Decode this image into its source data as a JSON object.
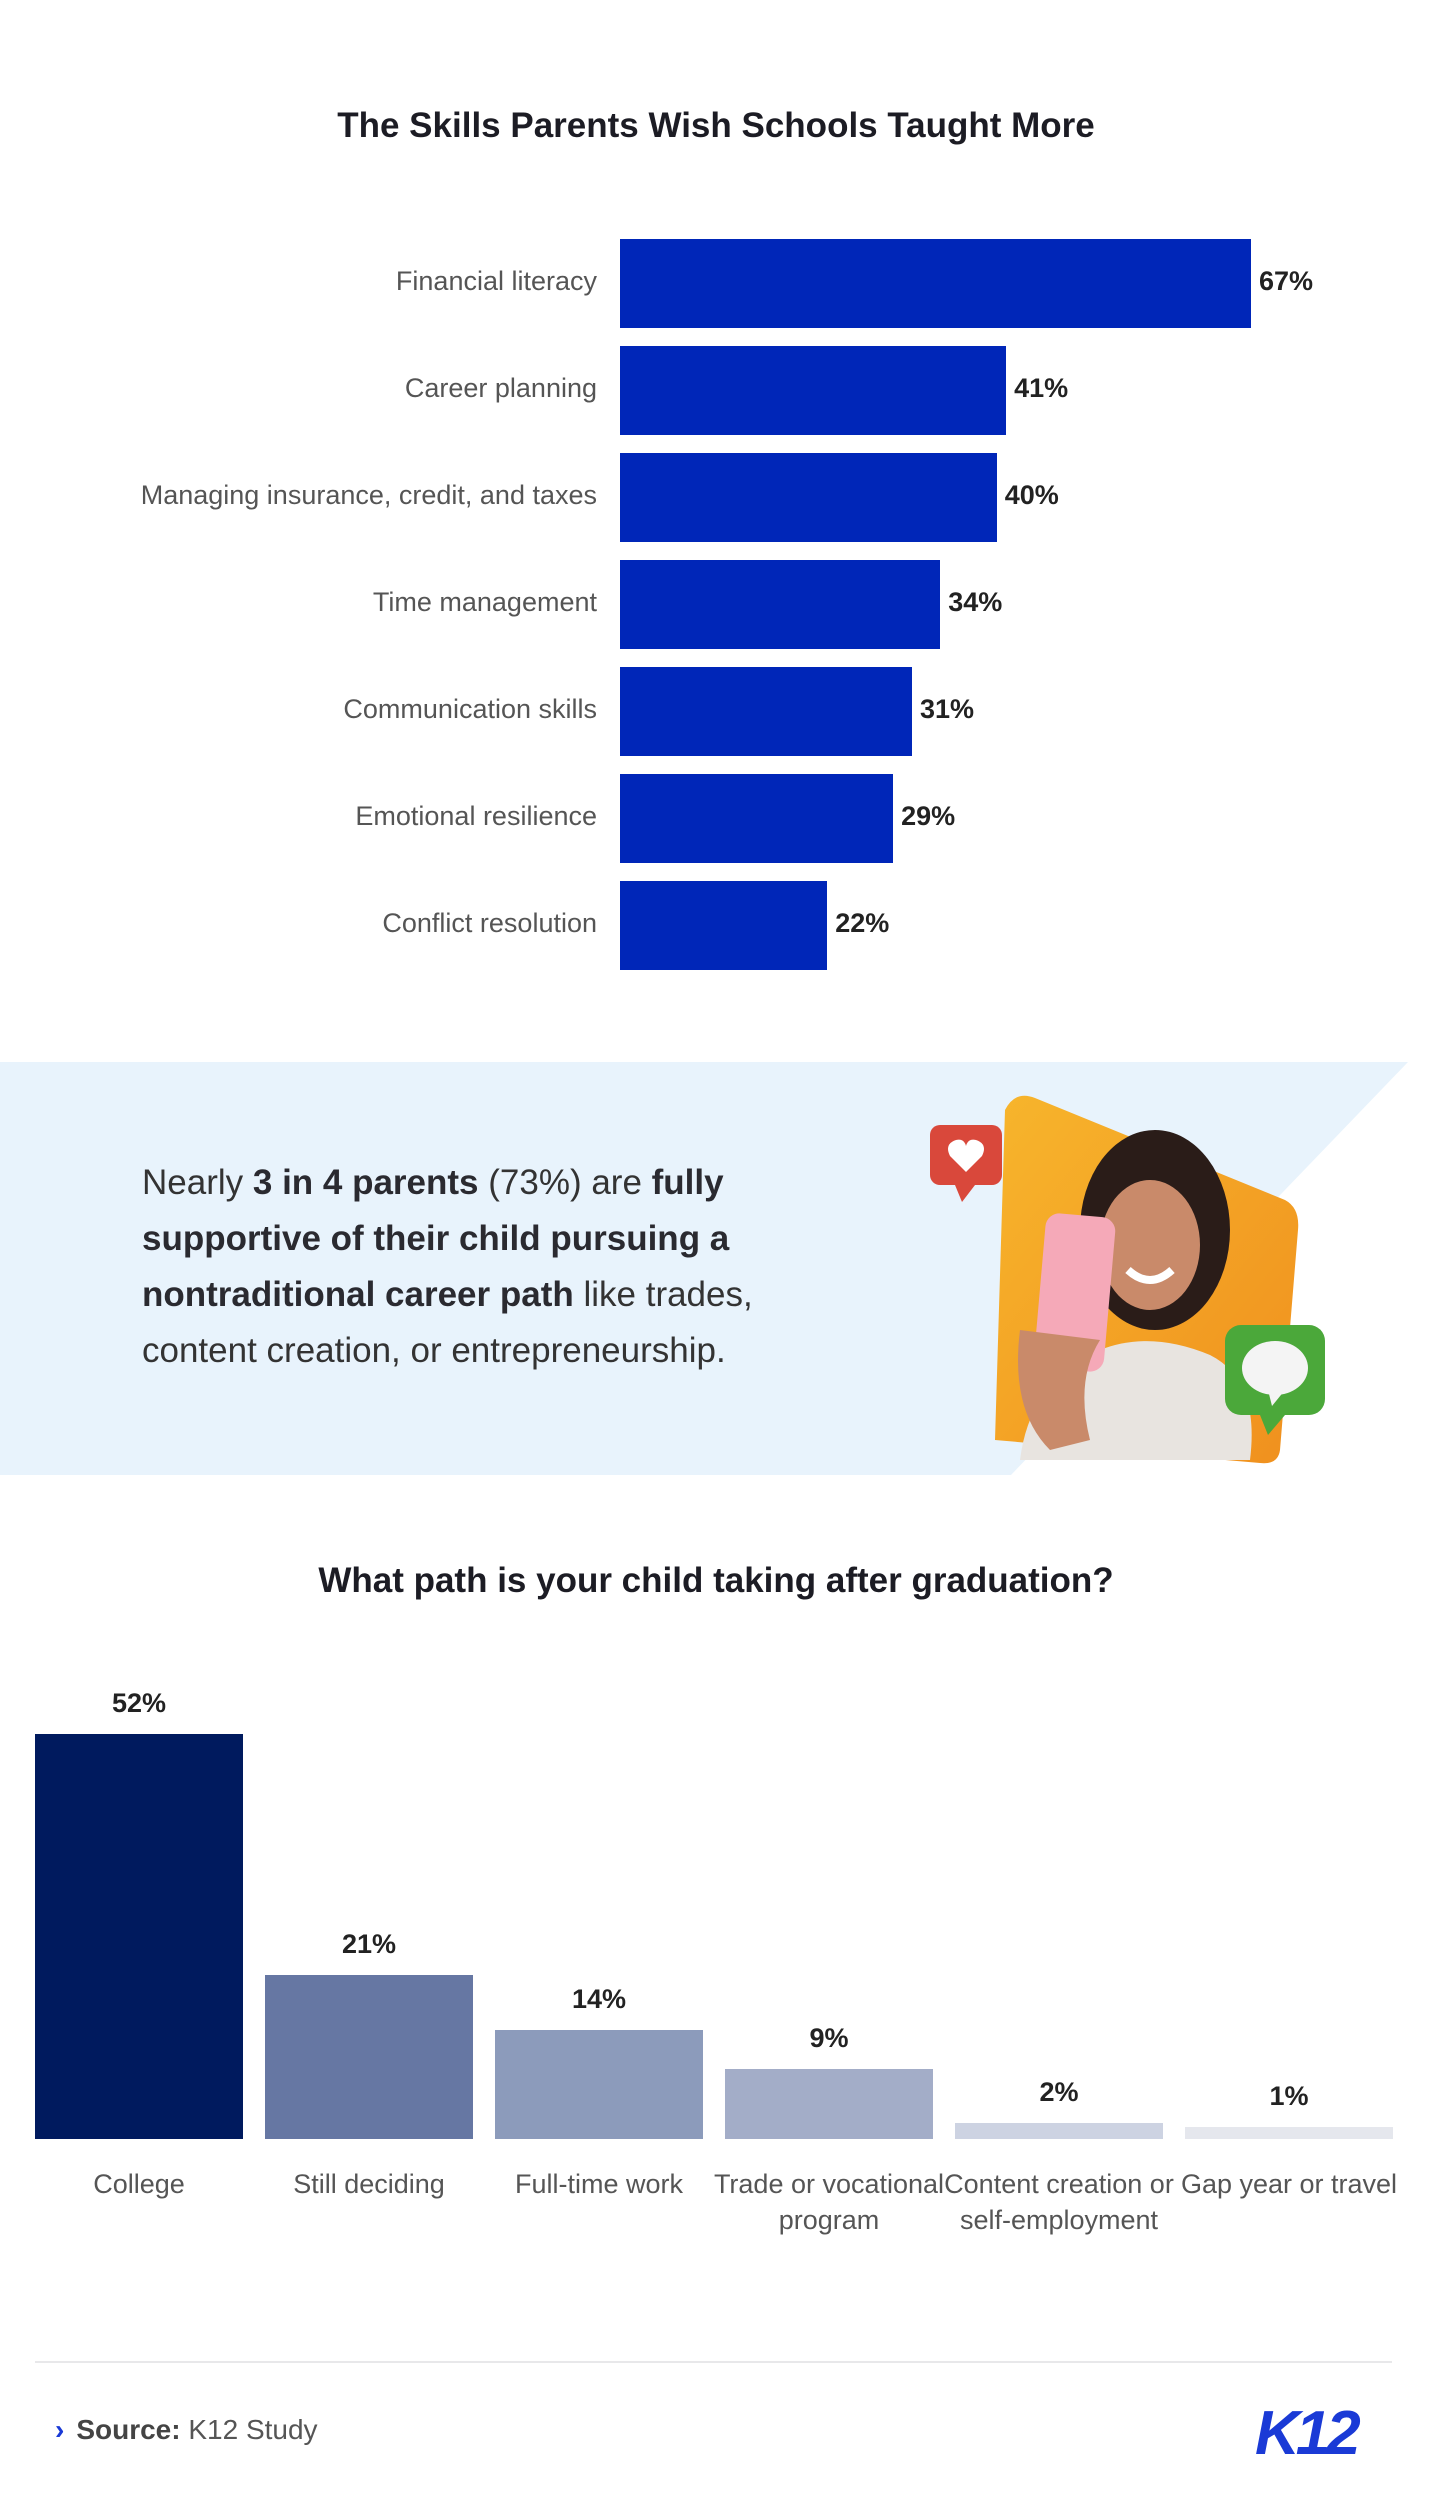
{
  "chart_data": [
    {
      "type": "bar",
      "orientation": "horizontal",
      "title": "The Skills Parents Wish Schools Taught More",
      "categories": [
        "Financial literacy",
        "Career planning",
        "Managing insurance, credit, and taxes",
        "Time management",
        "Communication skills",
        "Emotional resilience",
        "Conflict resolution"
      ],
      "values": [
        67,
        41,
        40,
        34,
        31,
        29,
        22
      ],
      "value_labels": [
        "67%",
        "41%",
        "40%",
        "34%",
        "31%",
        "29%",
        "22%"
      ],
      "color": "#0026B8",
      "xlim": [
        0,
        100
      ],
      "grid": false
    },
    {
      "type": "bar",
      "orientation": "vertical",
      "title": "What path is your child taking after graduation?",
      "categories": [
        "College",
        "Still deciding",
        "Full-time work",
        "Trade or vocational program",
        "Content creation or self-employment",
        "Gap year or travel"
      ],
      "values": [
        52,
        21,
        14,
        9,
        2,
        1
      ],
      "value_labels": [
        "52%",
        "21%",
        "14%",
        "9%",
        "2%",
        "1%"
      ],
      "colors": [
        "#001A5E",
        "#6677A3",
        "#8C9BBB",
        "#A3ADC8",
        "#CDD3E2",
        "#E5E7ED"
      ],
      "ylim": [
        0,
        52
      ],
      "grid": false
    }
  ],
  "callout": {
    "t1": "Nearly ",
    "b1": "3 in 4 parents",
    "t2": " (73%) are ",
    "b2": "fully supportive of their child pursuing a nontraditional career path",
    "t3": " like trades, content creation, or entrepreneurship."
  },
  "footer": {
    "source_label": "Source:",
    "source_value": " K12 Study",
    "logo": "K12"
  },
  "colors": {
    "band": "#E8F3FC",
    "accent": "#1A3AD6"
  }
}
